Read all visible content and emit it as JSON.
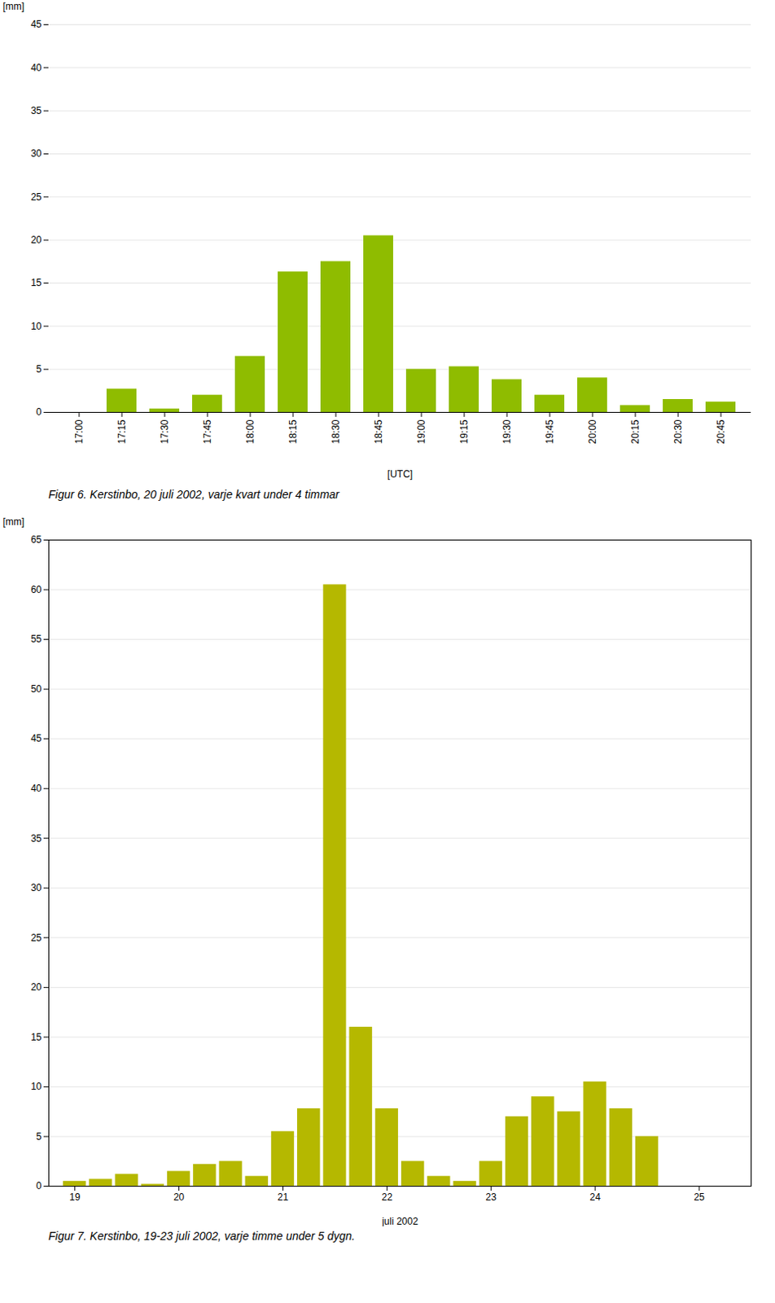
{
  "chart_data": [
    {
      "type": "bar",
      "categories": [
        "17:00",
        "17:15",
        "17:30",
        "17:45",
        "18:00",
        "18:15",
        "18:30",
        "18:45",
        "19:00",
        "19:15",
        "19:30",
        "19:45",
        "20:00",
        "20:15",
        "20:30",
        "20:45"
      ],
      "values": [
        0.0,
        2.7,
        0.4,
        2.0,
        6.5,
        16.3,
        17.5,
        20.5,
        5.0,
        5.3,
        3.8,
        2.0,
        4.0,
        0.8,
        1.5,
        1.2
      ],
      "color": "#8fbc00",
      "xlabel": "[UTC]",
      "ylabel": "[mm]",
      "ylim": [
        0,
        45
      ],
      "yticks": [
        0,
        5,
        10,
        15,
        20,
        25,
        30,
        35,
        40,
        45
      ],
      "grid": true,
      "caption": "Figur 6. Kerstinbo, 20 juli 2002, varje kvart under 4 timmar"
    },
    {
      "type": "bar",
      "x": [
        19.0,
        19.25,
        19.5,
        19.75,
        20.0,
        20.25,
        20.5,
        20.75,
        21.0,
        21.25,
        21.5,
        21.75,
        22.0,
        22.25,
        22.5,
        22.75,
        23.0,
        23.25,
        23.5,
        23.75,
        24.0,
        24.25,
        24.5,
        24.75
      ],
      "values": [
        0.5,
        0.7,
        1.2,
        0.2,
        1.5,
        2.2,
        2.5,
        1.0,
        5.5,
        7.8,
        60.5,
        16.0,
        7.8,
        2.5,
        1.0,
        0.5,
        2.5,
        7.0,
        9.0,
        7.5,
        10.5,
        7.8,
        5.0,
        0.0
      ],
      "color": "#b5b800",
      "xlabel": "juli 2002",
      "ylabel": "[mm]",
      "xlim": [
        18.75,
        25.5
      ],
      "xticks": [
        19,
        20,
        21,
        22,
        23,
        24,
        25
      ],
      "ylim": [
        0,
        65
      ],
      "yticks": [
        0,
        5,
        10,
        15,
        20,
        25,
        30,
        35,
        40,
        45,
        50,
        55,
        60,
        65
      ],
      "grid": true,
      "caption": "Figur 7. Kerstinbo, 19-23 juli 2002, varje timme under 5 dygn."
    }
  ]
}
